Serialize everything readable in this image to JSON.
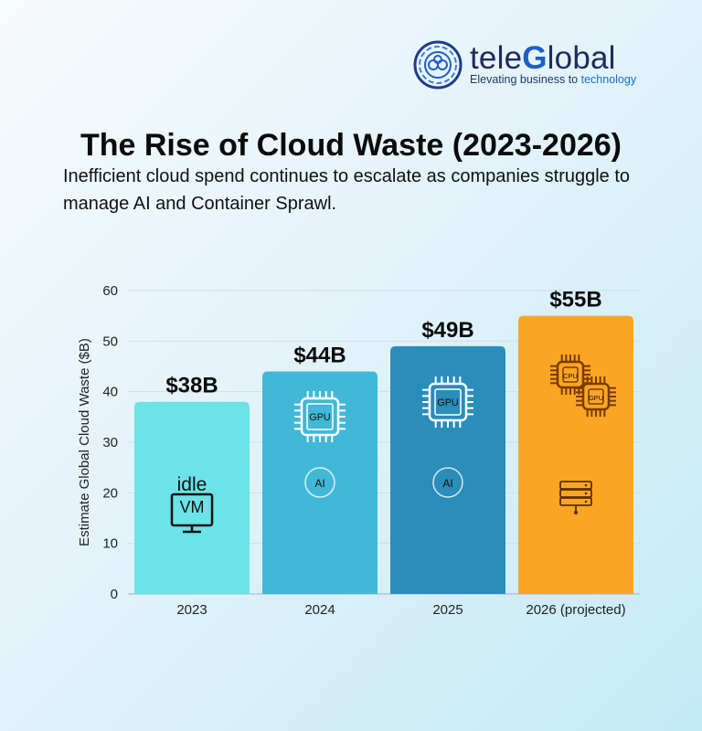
{
  "brand": {
    "name_part1": "tele",
    "name_part2": "G",
    "name_part3": "lobal",
    "tagline_part1": "Elevating business to ",
    "tagline_part2": "technology",
    "primary_color": "#0e2a57",
    "accent_color": "#1e5fc4"
  },
  "header": {
    "title": "The Rise of Cloud Waste (2023-2026)",
    "subtitle": "Inefficient cloud spend continues to escalate as companies struggle to manage AI and Container Sprawl."
  },
  "chart_data": {
    "type": "bar",
    "title": "The Rise of Cloud Waste (2023-2026)",
    "xlabel": "",
    "ylabel": "Estimate Global Cloud Waste ($B)",
    "ylim": [
      0,
      60
    ],
    "yticks": [
      0,
      10,
      20,
      30,
      40,
      50,
      60
    ],
    "grid": true,
    "categories": [
      "2023",
      "2024",
      "2025",
      "2026 (projected)"
    ],
    "values": [
      38,
      44,
      49,
      55
    ],
    "value_labels": [
      "$38B",
      "$44B",
      "$49B",
      "$55B"
    ],
    "colors": [
      "#6ce3e6",
      "#41b8d6",
      "#2a8dba",
      "#fba524"
    ],
    "bar_icons": [
      {
        "icon": "idle-vm-monitor-icon",
        "labels": [
          "idle",
          "VM"
        ]
      },
      {
        "icon": "gpu-chip-icon",
        "labels": [
          "GPU",
          "AI"
        ]
      },
      {
        "icon": "gpu-chip-icon",
        "labels": [
          "GPU",
          "AI"
        ]
      },
      {
        "icon": "cpu-gpu-server-icon",
        "labels": [
          "CPU",
          "GPU"
        ]
      }
    ]
  }
}
